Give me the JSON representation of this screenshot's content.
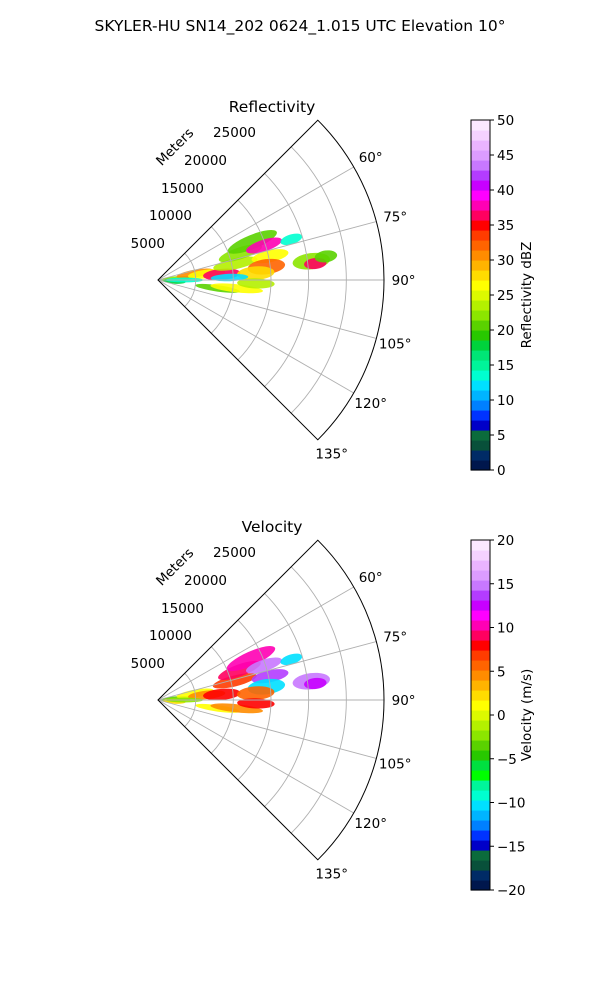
{
  "suptitle": "SKYLER-HU  SN14_202  0624_1.015 UTC Elevation 10°",
  "chart_data": [
    {
      "type": "heatmap",
      "title": "Reflectivity",
      "projection": "polar-sector",
      "theta_range_deg": [
        45,
        135
      ],
      "theta_ticks": [
        "60°",
        "75°",
        "90°",
        "105°",
        "120°",
        "135°"
      ],
      "radial_label": "Meters",
      "radial_ticks": [
        "5000",
        "10000",
        "15000",
        "20000",
        "25000"
      ],
      "rlim": [
        0,
        30000
      ],
      "grid": true,
      "colorbar": {
        "label": "Reflectivity dBZ",
        "vmin": 0,
        "vmax": 50,
        "ticks": [
          "0",
          "5",
          "10",
          "15",
          "20",
          "25",
          "30",
          "35",
          "40",
          "45",
          "50"
        ],
        "colors": [
          "#00174d",
          "#002b66",
          "#08503a",
          "#0b6b3c",
          "#0000c8",
          "#0033ff",
          "#0080ff",
          "#00b4ff",
          "#00e0ff",
          "#00ffd0",
          "#00f59a",
          "#00e676",
          "#00d23c",
          "#28c800",
          "#5ad200",
          "#8ce600",
          "#b4f000",
          "#dcfa00",
          "#ffff00",
          "#ffdc00",
          "#ffb400",
          "#ff8c00",
          "#ff6400",
          "#ff3c00",
          "#ff0000",
          "#ff0060",
          "#ff00b4",
          "#ff00ff",
          "#c800ff",
          "#b43cff",
          "#c878ff",
          "#dc9cff",
          "#eab4ff",
          "#f5d2ff",
          "#fbe8ff"
        ]
      },
      "echoes": [
        {
          "az": 86,
          "r": 2500,
          "dr": 2200,
          "daz": 6,
          "value": 22
        },
        {
          "az": 80,
          "r": 5000,
          "dr": 2500,
          "daz": 6,
          "value": 30
        },
        {
          "az": 83,
          "r": 6500,
          "dr": 2500,
          "daz": 5,
          "value": 27
        },
        {
          "az": 85,
          "r": 8500,
          "dr": 2500,
          "daz": 5,
          "value": 36
        },
        {
          "az": 78,
          "r": 10500,
          "dr": 3000,
          "daz": 4,
          "value": 24
        },
        {
          "az": 72,
          "r": 11500,
          "dr": 3000,
          "daz": 4,
          "value": 22
        },
        {
          "az": 68,
          "r": 13500,
          "dr": 3500,
          "daz": 4,
          "value": 20
        },
        {
          "az": 72,
          "r": 14800,
          "dr": 2500,
          "daz": 3,
          "value": 38
        },
        {
          "az": 78,
          "r": 15200,
          "dr": 2500,
          "daz": 3,
          "value": 26
        },
        {
          "az": 83,
          "r": 14500,
          "dr": 2500,
          "daz": 4,
          "value": 32
        },
        {
          "az": 86,
          "r": 13000,
          "dr": 2500,
          "daz": 4,
          "value": 28
        },
        {
          "az": 88,
          "r": 9500,
          "dr": 2500,
          "daz": 3,
          "value": 12
        },
        {
          "az": 98,
          "r": 8000,
          "dr": 3000,
          "daz": 3,
          "value": 21
        },
        {
          "az": 96,
          "r": 10500,
          "dr": 3500,
          "daz": 3,
          "value": 26
        },
        {
          "az": 92,
          "r": 13000,
          "dr": 2500,
          "daz": 3,
          "value": 24
        },
        {
          "az": 73,
          "r": 18500,
          "dr": 1500,
          "daz": 2,
          "value": 14
        },
        {
          "az": 83,
          "r": 20500,
          "dr": 2500,
          "daz": 3,
          "value": 22
        },
        {
          "az": 84,
          "r": 21000,
          "dr": 1500,
          "daz": 2,
          "value": 36
        },
        {
          "az": 82,
          "r": 22500,
          "dr": 1500,
          "daz": 2,
          "value": 20
        },
        {
          "az": 94,
          "r": 2200,
          "dr": 1500,
          "daz": 4,
          "value": 18
        },
        {
          "az": 90,
          "r": 3500,
          "dr": 2500,
          "daz": 4,
          "value": 13
        }
      ]
    },
    {
      "type": "heatmap",
      "title": "Velocity",
      "projection": "polar-sector",
      "theta_range_deg": [
        45,
        135
      ],
      "theta_ticks": [
        "60°",
        "75°",
        "90°",
        "105°",
        "120°",
        "135°"
      ],
      "radial_label": "Meters",
      "radial_ticks": [
        "5000",
        "10000",
        "15000",
        "20000",
        "25000"
      ],
      "rlim": [
        0,
        30000
      ],
      "grid": true,
      "colorbar": {
        "label": "Velocity (m/s)",
        "vmin": -20,
        "vmax": 20,
        "ticks": [
          "−20",
          "−15",
          "−10",
          "−5",
          "0",
          "5",
          "10",
          "15",
          "20"
        ],
        "colors": [
          "#00174d",
          "#002b66",
          "#08503a",
          "#0b6b3c",
          "#0000c8",
          "#0033ff",
          "#0080ff",
          "#00b4ff",
          "#00e0ff",
          "#00ffd0",
          "#00f59a",
          "#00ff00",
          "#00e040",
          "#28c800",
          "#5ad200",
          "#8ce600",
          "#b4f000",
          "#dcfa00",
          "#ffff00",
          "#ffdc00",
          "#ffb400",
          "#ff8c00",
          "#ff6400",
          "#ff3c00",
          "#ff0000",
          "#ff0060",
          "#ff00b4",
          "#ff00ff",
          "#c800ff",
          "#b43cff",
          "#c878ff",
          "#dc9cff",
          "#eab4ff",
          "#f5d2ff",
          "#fbe8ff"
        ]
      },
      "echoes": [
        {
          "az": 86,
          "r": 2500,
          "dr": 2200,
          "daz": 6,
          "value": -3
        },
        {
          "az": 80,
          "r": 5000,
          "dr": 2500,
          "daz": 6,
          "value": 1
        },
        {
          "az": 84,
          "r": 6500,
          "dr": 2500,
          "daz": 5,
          "value": 5
        },
        {
          "az": 85,
          "r": 8500,
          "dr": 2500,
          "daz": 5,
          "value": 8
        },
        {
          "az": 76,
          "r": 10500,
          "dr": 3000,
          "daz": 4,
          "value": 7
        },
        {
          "az": 70,
          "r": 11500,
          "dr": 3000,
          "daz": 4,
          "value": 9
        },
        {
          "az": 66,
          "r": 13500,
          "dr": 3500,
          "daz": 4,
          "value": 10
        },
        {
          "az": 72,
          "r": 14800,
          "dr": 2500,
          "daz": 3,
          "value": 15
        },
        {
          "az": 78,
          "r": 15200,
          "dr": 2500,
          "daz": 3,
          "value": 14
        },
        {
          "az": 83,
          "r": 14500,
          "dr": 2500,
          "daz": 4,
          "value": -10
        },
        {
          "az": 86,
          "r": 13000,
          "dr": 2500,
          "daz": 4,
          "value": 6
        },
        {
          "az": 98,
          "r": 8000,
          "dr": 3000,
          "daz": 3,
          "value": 1
        },
        {
          "az": 96,
          "r": 10500,
          "dr": 3500,
          "daz": 3,
          "value": 4
        },
        {
          "az": 92,
          "r": 13000,
          "dr": 2500,
          "daz": 3,
          "value": 8
        },
        {
          "az": 73,
          "r": 18500,
          "dr": 1500,
          "daz": 2,
          "value": -10
        },
        {
          "az": 83,
          "r": 20500,
          "dr": 2500,
          "daz": 3,
          "value": 15
        },
        {
          "az": 84,
          "r": 21000,
          "dr": 1500,
          "daz": 2,
          "value": 13
        },
        {
          "az": 94,
          "r": 2200,
          "dr": 1500,
          "daz": 4,
          "value": 2
        },
        {
          "az": 90,
          "r": 3500,
          "dr": 2500,
          "daz": 4,
          "value": -2
        }
      ]
    }
  ]
}
